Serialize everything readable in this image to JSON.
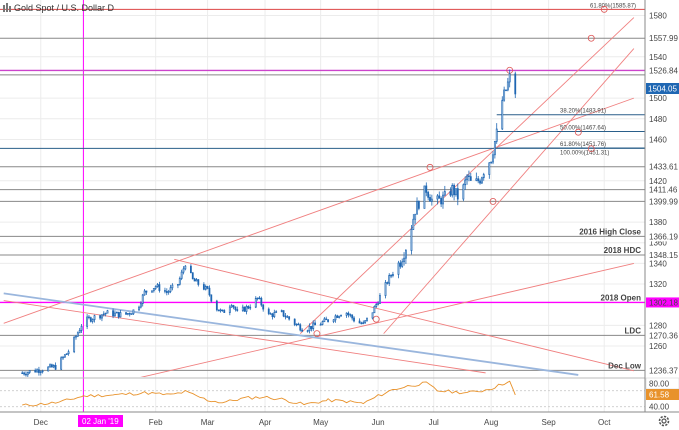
{
  "chart_data": {
    "type": "candlestick",
    "title": "Gold Spot / U.S. Dollar  D",
    "ylim": [
      1230,
      1595
    ],
    "yticks": [
      1580,
      1540,
      1500,
      1480,
      1460,
      1420,
      1380,
      1360,
      1340,
      1320,
      1280,
      1260
    ],
    "xticks": [
      {
        "label": "Dec",
        "day": 10
      },
      {
        "label": "Feb",
        "day": 72
      },
      {
        "label": "Mar",
        "day": 100
      },
      {
        "label": "Apr",
        "day": 131
      },
      {
        "label": "May",
        "day": 161
      },
      {
        "label": "Jun",
        "day": 192
      },
      {
        "label": "Jul",
        "day": 222
      },
      {
        "label": "Aug",
        "day": 253
      },
      {
        "label": "Sep",
        "day": 284
      },
      {
        "label": "Oct",
        "day": 314
      }
    ],
    "highlighted_date": {
      "label": "02 Jan '19",
      "day": 33
    },
    "last_day": 266,
    "last_price": 1504.05,
    "price_path": [
      [
        0,
        1234
      ],
      [
        18,
        1240
      ],
      [
        25,
        1255
      ],
      [
        33,
        1284
      ],
      [
        45,
        1292
      ],
      [
        55,
        1290
      ],
      [
        62,
        1296
      ],
      [
        66,
        1312
      ],
      [
        72,
        1318
      ],
      [
        78,
        1312
      ],
      [
        84,
        1320
      ],
      [
        88,
        1340
      ],
      [
        92,
        1324
      ],
      [
        100,
        1314
      ],
      [
        104,
        1298
      ],
      [
        108,
        1292
      ],
      [
        113,
        1302
      ],
      [
        116,
        1292
      ],
      [
        122,
        1298
      ],
      [
        127,
        1306
      ],
      [
        133,
        1290
      ],
      [
        140,
        1292
      ],
      [
        147,
        1282
      ],
      [
        152,
        1276
      ],
      [
        158,
        1280
      ],
      [
        161,
        1282
      ],
      [
        166,
        1286
      ],
      [
        170,
        1290
      ],
      [
        174,
        1294
      ],
      [
        180,
        1284
      ],
      [
        184,
        1281
      ],
      [
        188,
        1290
      ],
      [
        192,
        1304
      ],
      [
        198,
        1326
      ],
      [
        204,
        1342
      ],
      [
        208,
        1360
      ],
      [
        212,
        1392
      ],
      [
        216,
        1406
      ],
      [
        218,
        1412
      ],
      [
        222,
        1398
      ],
      [
        228,
        1404
      ],
      [
        232,
        1412
      ],
      [
        236,
        1402
      ],
      [
        240,
        1424
      ],
      [
        243,
        1415
      ],
      [
        247,
        1422
      ],
      [
        250,
        1434
      ],
      [
        253,
        1442
      ],
      [
        256,
        1466
      ],
      [
        259,
        1498
      ],
      [
        261,
        1508
      ],
      [
        263,
        1520
      ],
      [
        265,
        1510
      ],
      [
        266,
        1504
      ]
    ],
    "horizontal_levels": [
      {
        "label": "1557.99",
        "value": 1557.99,
        "color": "#888888"
      },
      {
        "label": "1526.84",
        "value": 1526.84,
        "color": "#cc44cc"
      },
      {
        "label": "",
        "value": 1522.5,
        "color": "#888888"
      },
      {
        "label": "1433.61",
        "value": 1433.61,
        "color": "#888888"
      },
      {
        "label": "1411.46",
        "value": 1411.46,
        "color": "#888888"
      },
      {
        "label": "1399.99",
        "value": 1399.99,
        "color": "#888888"
      },
      {
        "label": "1366.19",
        "value": 1366.19,
        "color": "#888888"
      },
      {
        "label": "1348.15",
        "value": 1348.15,
        "color": "#888888"
      },
      {
        "label": "1302.18",
        "value": 1302.18,
        "color": "#ff00ff"
      },
      {
        "label": "1270.36",
        "value": 1270.36,
        "color": "#888888"
      },
      {
        "label": "1236.37",
        "value": 1236.37,
        "color": "#888888"
      }
    ],
    "level_annotations": [
      {
        "label": "2016 High Close",
        "value": 1366.19
      },
      {
        "label": "2018 HDC",
        "value": 1348.15
      },
      {
        "label": "2018 Open",
        "value": 1302.18
      },
      {
        "label": "LDC",
        "value": 1270.36
      },
      {
        "label": "Dec Low",
        "value": 1236.37
      }
    ],
    "fibonacci_levels": [
      {
        "label": "61.80%(1585.87)",
        "value": 1585.87,
        "color": "#dd4444"
      },
      {
        "label": "38.20%(1483.91)",
        "value": 1483.91,
        "color": "#2a5f8a"
      },
      {
        "label": "50.00%(1467.64)",
        "value": 1467.64,
        "color": "#2a5f8a"
      },
      {
        "label": "61.80%(1451.76)",
        "value": 1451.76,
        "color": "#2a5f8a"
      },
      {
        "label": "100.00%(1451.31)",
        "value": 1451.31,
        "color": "#2a5f8a"
      }
    ],
    "trendlines": [
      {
        "color": "#f08080",
        "from": [
          150,
          1272
        ],
        "to": [
          330,
          1578
        ]
      },
      {
        "color": "#f08080",
        "from": [
          195,
          1272
        ],
        "to": [
          330,
          1548
        ]
      },
      {
        "color": "#f08080",
        "from": [
          60,
          1228
        ],
        "to": [
          330,
          1340
        ]
      },
      {
        "color": "#f08080",
        "from": [
          -10,
          1282
        ],
        "to": [
          330,
          1500
        ]
      },
      {
        "color": "#f08080",
        "from": [
          82,
          1344
        ],
        "to": [
          330,
          1236
        ]
      },
      {
        "color": "#f08080",
        "from": [
          -10,
          1304
        ],
        "to": [
          250,
          1234
        ]
      },
      {
        "color": "#9ab6dd",
        "from": [
          -10,
          1311
        ],
        "to": [
          300,
          1232
        ]
      }
    ],
    "rsi": {
      "ylim": [
        30,
        90
      ],
      "yticks": [
        80.0,
        40.0
      ],
      "current": 61.58,
      "reference_levels": [
        70,
        40
      ],
      "values": [
        [
          0,
          42
        ],
        [
          20,
          48
        ],
        [
          33,
          60
        ],
        [
          50,
          62
        ],
        [
          66,
          66
        ],
        [
          80,
          62
        ],
        [
          88,
          68
        ],
        [
          100,
          52
        ],
        [
          108,
          48
        ],
        [
          120,
          56
        ],
        [
          130,
          58
        ],
        [
          140,
          54
        ],
        [
          152,
          44
        ],
        [
          165,
          52
        ],
        [
          175,
          50
        ],
        [
          184,
          46
        ],
        [
          192,
          60
        ],
        [
          200,
          72
        ],
        [
          210,
          80
        ],
        [
          218,
          84
        ],
        [
          224,
          70
        ],
        [
          232,
          68
        ],
        [
          240,
          66
        ],
        [
          248,
          70
        ],
        [
          253,
          74
        ],
        [
          260,
          84
        ],
        [
          263,
          86
        ],
        [
          266,
          62
        ]
      ]
    }
  },
  "header": {
    "title": "Gold Spot / U.S. Dollar  D"
  },
  "price_badge": {
    "value": "1504.05"
  },
  "rsi_badges": {
    "upper": "80.00",
    "current": "61.58",
    "lower": "40.00"
  },
  "date_badge": {
    "value": "02 Jan '19"
  },
  "colors": {
    "bull": "#1f67b3",
    "bear": "#1f67b3",
    "fib": "#2a5f8a",
    "support": "#888888",
    "magenta": "#ff00ff",
    "trend": "#f08080",
    "long_trend": "#9ab6dd",
    "rsi": "#e8922b",
    "badge": "#1f67b3"
  },
  "icons": {
    "settings": "gear-icon"
  }
}
